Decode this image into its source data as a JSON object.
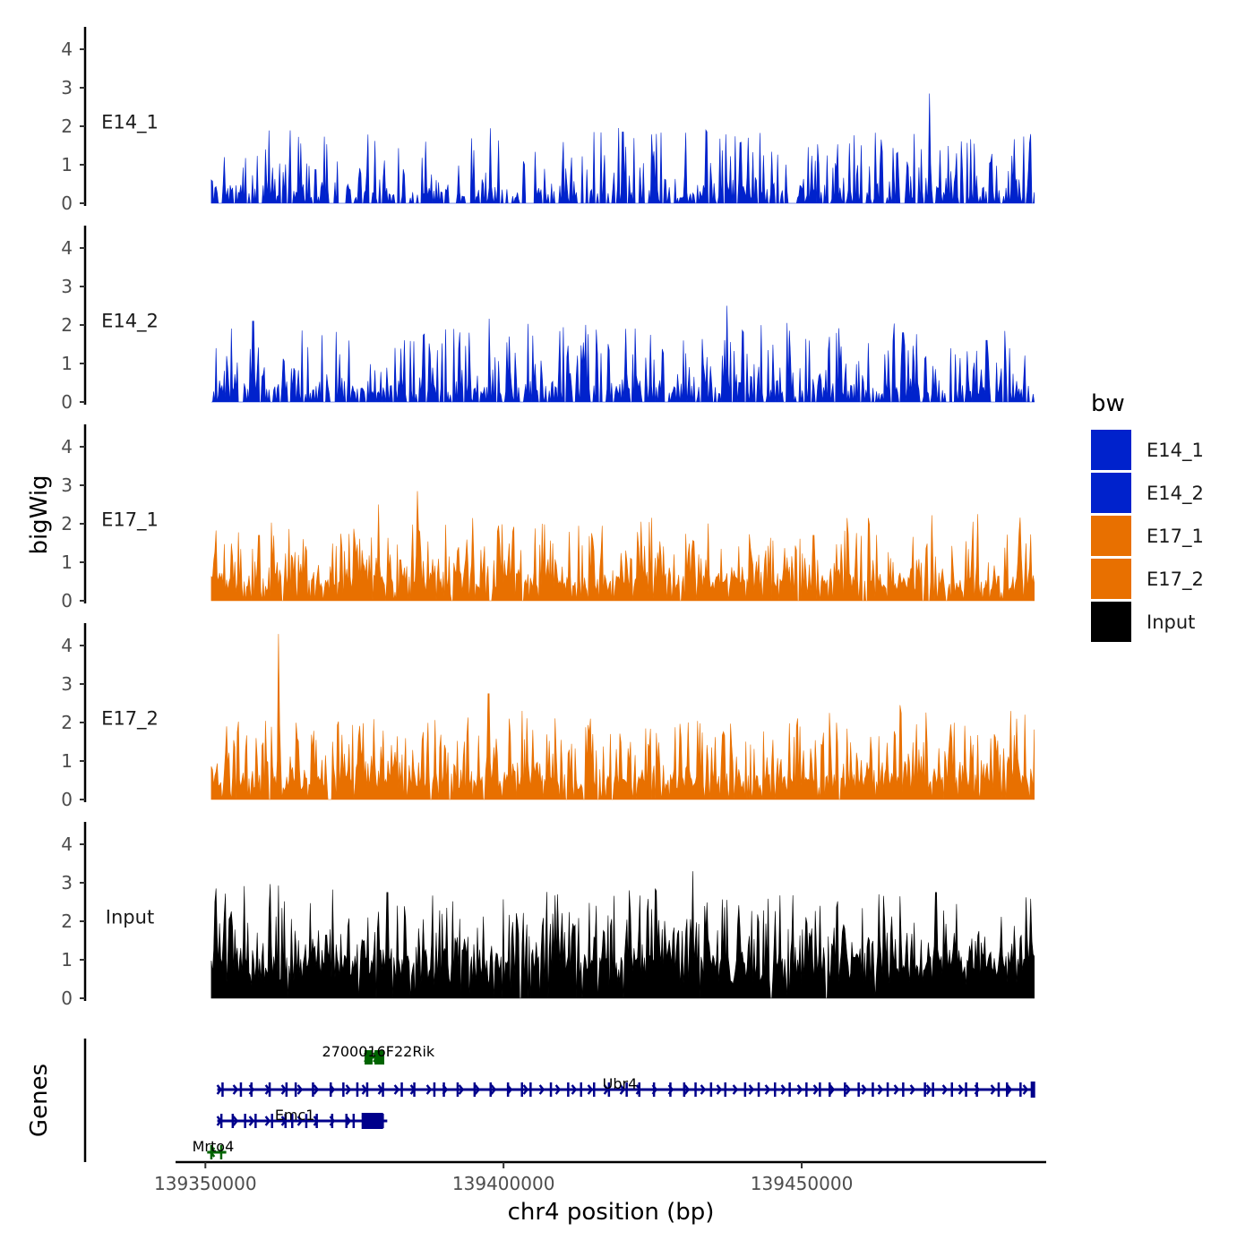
{
  "chart_data": {
    "type": "area",
    "chromosome": "chr4",
    "xlabel": "chr4 position (bp)",
    "ylabel": "bigWig",
    "genes_label": "Genes",
    "xlim": [
      139345000,
      139491000
    ],
    "data_xrange": [
      139351000,
      139489000
    ],
    "ylim": [
      0,
      4.5
    ],
    "yticks": [
      0,
      1,
      2,
      3,
      4
    ],
    "xticks": [
      139350000,
      139400000,
      139450000
    ],
    "xtick_labels": [
      "139350000",
      "139400000",
      "139450000"
    ],
    "legend": {
      "title": "bw",
      "position": "right",
      "entries": [
        {
          "label": "E14_1",
          "color": "#0022cc"
        },
        {
          "label": "E14_2",
          "color": "#0022cc"
        },
        {
          "label": "E17_1",
          "color": "#e87000"
        },
        {
          "label": "E17_2",
          "color": "#e87000"
        },
        {
          "label": "Input",
          "color": "#000000"
        }
      ]
    },
    "series": [
      {
        "name": "E14_1",
        "color": "#0022cc",
        "base_level": 0.25,
        "noise_scale": 0.75,
        "sparsity": 0.45,
        "seed": 11,
        "peaks": [
          {
            "x": 139471500,
            "y": 2.85
          },
          {
            "x": 139397800,
            "y": 1.95
          },
          {
            "x": 139420000,
            "y": 1.85
          },
          {
            "x": 139425600,
            "y": 1.8
          },
          {
            "x": 139441000,
            "y": 1.7
          },
          {
            "x": 139387000,
            "y": 1.6
          },
          {
            "x": 139458000,
            "y": 1.55
          },
          {
            "x": 139366000,
            "y": 1.55
          }
        ]
      },
      {
        "name": "E14_2",
        "color": "#0022cc",
        "base_level": 0.3,
        "noise_scale": 0.8,
        "sparsity": 0.4,
        "seed": 23,
        "peaks": [
          {
            "x": 139437500,
            "y": 2.5
          },
          {
            "x": 139358000,
            "y": 2.1
          },
          {
            "x": 139420500,
            "y": 1.9
          },
          {
            "x": 139448000,
            "y": 1.85
          },
          {
            "x": 139394200,
            "y": 1.8
          },
          {
            "x": 139467000,
            "y": 1.8
          },
          {
            "x": 139401000,
            "y": 1.7
          },
          {
            "x": 139481000,
            "y": 1.6
          }
        ]
      },
      {
        "name": "E17_1",
        "color": "#e87000",
        "base_level": 0.45,
        "noise_scale": 0.75,
        "sparsity": 0.15,
        "seed": 37,
        "peaks": [
          {
            "x": 139385500,
            "y": 2.85
          },
          {
            "x": 139479500,
            "y": 2.25
          },
          {
            "x": 139379000,
            "y": 2.5
          },
          {
            "x": 139406500,
            "y": 2.0
          },
          {
            "x": 139423000,
            "y": 1.7
          },
          {
            "x": 139359000,
            "y": 1.7
          },
          {
            "x": 139452000,
            "y": 1.7
          },
          {
            "x": 139486500,
            "y": 1.75
          }
        ]
      },
      {
        "name": "E17_2",
        "color": "#e87000",
        "base_level": 0.45,
        "noise_scale": 0.8,
        "sparsity": 0.12,
        "seed": 41,
        "peaks": [
          {
            "x": 139362300,
            "y": 4.3
          },
          {
            "x": 139397500,
            "y": 2.75
          },
          {
            "x": 139466500,
            "y": 2.45
          },
          {
            "x": 139414500,
            "y": 2.1
          },
          {
            "x": 139431000,
            "y": 2.0
          },
          {
            "x": 139486000,
            "y": 2.1
          },
          {
            "x": 139353500,
            "y": 1.9
          },
          {
            "x": 139475000,
            "y": 1.95
          }
        ]
      },
      {
        "name": "Input",
        "color": "#000000",
        "base_level": 0.8,
        "noise_scale": 0.9,
        "sparsity": 0.03,
        "seed": 53,
        "peaks": [
          {
            "x": 139431700,
            "y": 3.3
          },
          {
            "x": 139425500,
            "y": 2.85
          },
          {
            "x": 139380500,
            "y": 2.75
          },
          {
            "x": 139409000,
            "y": 2.7
          },
          {
            "x": 139472500,
            "y": 2.75
          },
          {
            "x": 139463000,
            "y": 2.7
          },
          {
            "x": 139390500,
            "y": 2.35
          },
          {
            "x": 139453000,
            "y": 2.4
          }
        ]
      }
    ],
    "genes": [
      {
        "name": "2700016F22Rik",
        "color": "#006400",
        "row": 0,
        "start": 139376700,
        "end": 139380000,
        "strand": "+",
        "label_x": 139379000
      },
      {
        "name": "Ubr4",
        "color": "#00008b",
        "row": 1,
        "start": 139352000,
        "end": 139489000,
        "strand": "+",
        "label_x": 139419500
      },
      {
        "name": "Emc1",
        "color": "#00008b",
        "row": 2,
        "start": 139352000,
        "end": 139380500,
        "strand": "+",
        "label_x": 139365000
      },
      {
        "name": "Mrto4",
        "color": "#006400",
        "row": 3,
        "start": 139350300,
        "end": 139353500,
        "strand": "-",
        "label_x": 139351300
      }
    ]
  }
}
